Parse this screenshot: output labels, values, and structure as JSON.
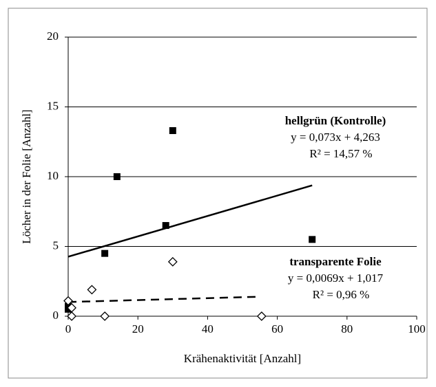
{
  "chart_data": {
    "type": "scatter",
    "xlabel": "Krähenaktivität [Anzahl]",
    "ylabel": "Löcher in der Folie [Anzahl]",
    "xlim": [
      0,
      100
    ],
    "xticks": [
      0,
      20,
      40,
      60,
      80,
      100
    ],
    "ylim": [
      0,
      20
    ],
    "yticks": [
      0,
      5,
      10,
      15,
      20
    ],
    "grid": true,
    "series": [
      {
        "name": "hellgrün (Kontrolle)",
        "marker": "square",
        "color": "#000000",
        "x": [
          0,
          0,
          10.5,
          14,
          28,
          30,
          70
        ],
        "values": [
          0.5,
          0.7,
          4.5,
          10,
          6.5,
          13.3,
          5.5
        ],
        "trend": {
          "slope": 0.073,
          "intercept": 4.263,
          "x": [
            0,
            70
          ],
          "dash": false
        },
        "equation": "y = 0,073x + 4,263",
        "r2": "R² = 14,57 %"
      },
      {
        "name": "transparente Folie",
        "marker": "diamond",
        "color": "#000000",
        "x": [
          0,
          1,
          1,
          6.8,
          10.5,
          30,
          55.5
        ],
        "values": [
          1.1,
          0.6,
          0,
          1.9,
          0,
          3.9,
          0
        ],
        "trend": {
          "slope": 0.0069,
          "intercept": 1.017,
          "x": [
            0,
            55
          ],
          "dash": true
        },
        "equation": "y = 0,0069x + 1,017",
        "r2": "R² = 0,96 %"
      }
    ]
  }
}
